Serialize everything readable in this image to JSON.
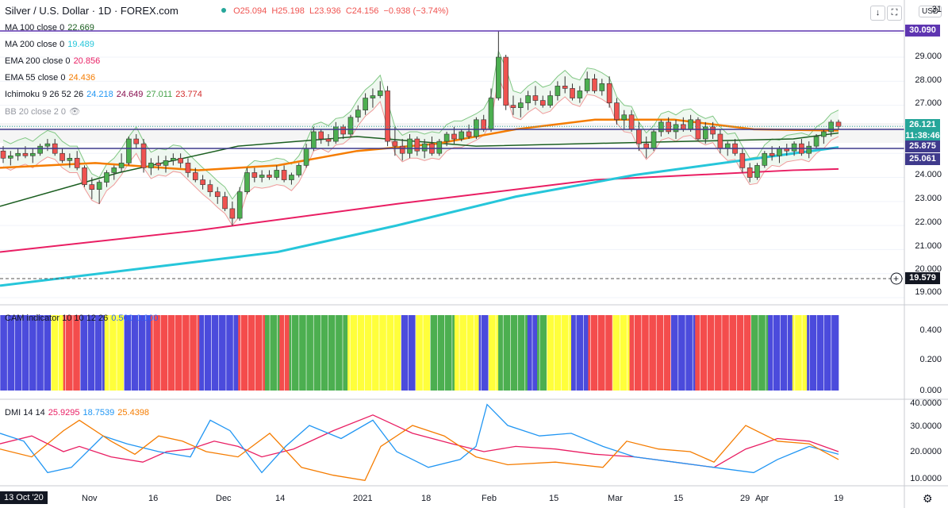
{
  "header": {
    "title": "Silver / U.S. Dollar · 1D · FOREX.com",
    "open": "O25.094",
    "high": "H25.198",
    "low": "L23.936",
    "close": "C24.156",
    "change": "−0.938 (−3.74%)",
    "currency": "USD",
    "down_arrow": "↓",
    "maximize": "⛶"
  },
  "indicators": [
    {
      "label": "MA 100 close 0",
      "values": [
        "22.669"
      ],
      "colors": [
        "#1b5e20"
      ]
    },
    {
      "label": "MA 200 close 0",
      "values": [
        "19.489"
      ],
      "colors": [
        "#26c6da"
      ]
    },
    {
      "label": "EMA 200 close 0",
      "values": [
        "20.856"
      ],
      "colors": [
        "#e91e63"
      ]
    },
    {
      "label": "EMA 55 close 0",
      "values": [
        "24.436"
      ],
      "colors": [
        "#f57c00"
      ]
    },
    {
      "label": "Ichimoku 9 26 52 26",
      "values": [
        "24.218",
        "24.649",
        "27.011",
        "23.774"
      ],
      "colors": [
        "#2196f3",
        "#880e4f",
        "#43a047",
        "#d32f2f"
      ]
    },
    {
      "label": "BB 20 close 2 0",
      "values": [],
      "colors": []
    }
  ],
  "price_axis": {
    "ticks": [
      "31",
      "29.000",
      "28.000",
      "27.000",
      "24.000",
      "23.000",
      "22.000",
      "21.000",
      "20.000",
      "19.000"
    ],
    "tags": [
      {
        "value": "30.090",
        "color": "#5e35b1"
      },
      {
        "value": "26.121",
        "color": "#26a69a"
      },
      {
        "value": "11:38:46",
        "color": "#26a69a"
      },
      {
        "value": "25.875",
        "color": "#3f3a8c"
      },
      {
        "value": "25.061",
        "color": "#3f3a8c"
      },
      {
        "value": "19.579",
        "color": "#131722"
      }
    ]
  },
  "cam": {
    "label": "CAM indicator 10 10 12 26",
    "value1": "0.500",
    "value2": "0.000",
    "ticks": [
      "0.400",
      "0.200",
      "0.000"
    ],
    "colors": {
      "B": "#4b4bdc",
      "Y": "#ffff3b",
      "R": "#f44c4c",
      "G": "#4caf50"
    },
    "sequence": "BBBBBBBBBBBBBBBBBBBBBYYYYYRRRRRRRBBBBBBBBBBYYYYYYYYBBBBBBBBBBBRRRRRRRRRRRRRRRRRRRRBBBBBBBBBBBBBBBBRRRRRRRRRRRGGGGGGRRRRGGGGGGGGGGGGGGGGGGGGGGGGYYYYYYYYYYYYYYYYYYYYYYBBBBBBYYYYYYGGGGGGGGGGYYYYYYYYYYBBBBYYYYGGGGGGGGGGGGBBBBGGGGYYYYYYYYYYBBBBBBBRRRRRRRRRRYYYYYYYRRRRRRRRRRRRRRRRRBBBBBBBBBBRRRRRRRRRRRRRRRRRRRRRRRGGGGGGGBBBBBBBBBBYYYYYYBBBBBBBBBBBBB"
  },
  "dmi": {
    "label": "DMI 14 14",
    "adx": "25.9295",
    "plus": "18.7539",
    "minus": "25.4398",
    "ticks": [
      "40.0000",
      "30.0000",
      "20.0000",
      "10.0000"
    ]
  },
  "time_axis": {
    "start": "13 Oct '20",
    "labels": [
      {
        "t": "Nov",
        "x": 103
      },
      {
        "t": "16",
        "x": 187
      },
      {
        "t": "Dec",
        "x": 272
      },
      {
        "t": "14",
        "x": 347
      },
      {
        "t": "2021",
        "x": 445
      },
      {
        "t": "18",
        "x": 531
      },
      {
        "t": "Feb",
        "x": 607
      },
      {
        "t": "15",
        "x": 692
      },
      {
        "t": "Mar",
        "x": 766
      },
      {
        "t": "15",
        "x": 849
      },
      {
        "t": "29",
        "x": 933
      },
      {
        "t": "Apr",
        "x": 952
      },
      {
        "t": "19",
        "x": 1051
      }
    ]
  },
  "chart_data": {
    "type": "candlestick",
    "title": "Silver / U.S. Dollar · 1D · FOREX.com",
    "ylim": [
      18.6,
      31.0
    ],
    "horizontal_levels": [
      30.09,
      25.875,
      25.061,
      19.579
    ],
    "candles": [
      [
        25.1,
        25.3,
        24.6,
        24.8
      ],
      [
        24.8,
        25.1,
        24.5,
        24.9
      ],
      [
        24.9,
        25.2,
        24.7,
        25.0
      ],
      [
        25.0,
        25.3,
        24.8,
        24.9
      ],
      [
        24.9,
        25.2,
        24.6,
        25.0
      ],
      [
        25.0,
        25.4,
        24.9,
        25.3
      ],
      [
        25.3,
        25.6,
        25.1,
        25.4
      ],
      [
        25.4,
        25.6,
        24.9,
        25.0
      ],
      [
        25.0,
        25.2,
        24.6,
        24.7
      ],
      [
        24.7,
        25.0,
        24.4,
        24.8
      ],
      [
        24.8,
        25.1,
        24.3,
        24.4
      ],
      [
        24.4,
        24.5,
        23.6,
        23.7
      ],
      [
        23.7,
        24.0,
        23.1,
        23.5
      ],
      [
        23.5,
        23.9,
        22.9,
        23.8
      ],
      [
        23.8,
        24.3,
        23.6,
        24.2
      ],
      [
        24.2,
        24.5,
        23.9,
        24.4
      ],
      [
        24.4,
        25.0,
        24.2,
        24.6
      ],
      [
        24.6,
        25.7,
        24.5,
        25.6
      ],
      [
        25.6,
        25.8,
        25.2,
        25.4
      ],
      [
        25.4,
        25.6,
        24.2,
        24.4
      ],
      [
        24.4,
        24.8,
        24.1,
        24.6
      ],
      [
        24.6,
        24.9,
        24.3,
        24.5
      ],
      [
        24.5,
        24.9,
        24.2,
        24.7
      ],
      [
        24.7,
        25.0,
        24.5,
        24.8
      ],
      [
        24.8,
        25.0,
        24.4,
        24.6
      ],
      [
        24.6,
        24.8,
        24.0,
        24.2
      ],
      [
        24.2,
        24.4,
        23.8,
        23.9
      ],
      [
        23.9,
        24.1,
        23.5,
        23.7
      ],
      [
        23.7,
        23.9,
        23.2,
        23.4
      ],
      [
        23.4,
        23.6,
        22.9,
        23.2
      ],
      [
        23.2,
        23.4,
        22.6,
        22.7
      ],
      [
        22.7,
        23.0,
        22.0,
        22.3
      ],
      [
        22.3,
        23.6,
        22.2,
        23.4
      ],
      [
        23.4,
        24.4,
        23.3,
        24.2
      ],
      [
        24.2,
        24.4,
        23.8,
        24.0
      ],
      [
        24.0,
        24.3,
        23.8,
        24.1
      ],
      [
        24.1,
        24.3,
        23.9,
        24.0
      ],
      [
        24.0,
        24.5,
        23.9,
        24.3
      ],
      [
        24.3,
        24.5,
        23.8,
        23.9
      ],
      [
        23.9,
        24.2,
        23.7,
        24.1
      ],
      [
        24.1,
        24.6,
        24.0,
        24.5
      ],
      [
        24.5,
        25.4,
        24.4,
        25.2
      ],
      [
        25.2,
        26.1,
        25.1,
        25.9
      ],
      [
        25.9,
        26.0,
        25.4,
        25.6
      ],
      [
        25.6,
        25.8,
        25.3,
        25.5
      ],
      [
        25.5,
        26.3,
        25.4,
        26.1
      ],
      [
        26.1,
        26.2,
        25.6,
        25.8
      ],
      [
        25.8,
        26.6,
        25.7,
        26.5
      ],
      [
        26.5,
        27.0,
        26.3,
        26.8
      ],
      [
        26.8,
        27.5,
        26.6,
        27.3
      ],
      [
        27.3,
        27.7,
        26.9,
        27.4
      ],
      [
        27.4,
        28.0,
        27.3,
        27.6
      ],
      [
        27.6,
        27.8,
        25.3,
        25.5
      ],
      [
        25.5,
        26.1,
        24.9,
        25.3
      ],
      [
        25.3,
        25.6,
        24.7,
        25.0
      ],
      [
        25.0,
        25.8,
        24.8,
        25.6
      ],
      [
        25.6,
        25.7,
        24.9,
        25.1
      ],
      [
        25.1,
        25.6,
        24.8,
        25.4
      ],
      [
        25.4,
        25.7,
        24.9,
        25.0
      ],
      [
        25.0,
        25.6,
        24.9,
        25.5
      ],
      [
        25.5,
        25.9,
        25.3,
        25.8
      ],
      [
        25.8,
        26.1,
        25.4,
        25.6
      ],
      [
        25.6,
        26.0,
        25.5,
        25.9
      ],
      [
        25.9,
        26.2,
        25.6,
        25.7
      ],
      [
        25.7,
        26.5,
        25.6,
        26.4
      ],
      [
        26.4,
        26.6,
        25.9,
        26.0
      ],
      [
        26.0,
        27.7,
        25.9,
        27.3
      ],
      [
        27.3,
        30.1,
        27.2,
        29.0
      ],
      [
        29.0,
        29.1,
        26.8,
        27.0
      ],
      [
        27.0,
        27.4,
        26.6,
        26.9
      ],
      [
        26.9,
        27.3,
        26.5,
        27.1
      ],
      [
        27.1,
        27.6,
        26.8,
        27.4
      ],
      [
        27.4,
        27.8,
        27.0,
        27.2
      ],
      [
        27.2,
        27.4,
        26.9,
        27.0
      ],
      [
        27.0,
        27.6,
        26.9,
        27.4
      ],
      [
        27.4,
        28.0,
        27.2,
        27.8
      ],
      [
        27.8,
        28.2,
        27.5,
        27.7
      ],
      [
        27.7,
        27.9,
        27.2,
        27.3
      ],
      [
        27.3,
        27.8,
        27.1,
        27.6
      ],
      [
        27.6,
        28.4,
        27.5,
        28.1
      ],
      [
        28.1,
        28.3,
        27.5,
        27.6
      ],
      [
        27.6,
        28.1,
        27.4,
        27.9
      ],
      [
        27.9,
        28.2,
        26.9,
        27.1
      ],
      [
        27.1,
        27.3,
        26.2,
        26.4
      ],
      [
        26.4,
        26.8,
        26.0,
        26.6
      ],
      [
        26.6,
        26.8,
        25.9,
        26.0
      ],
      [
        26.0,
        26.3,
        25.1,
        25.4
      ],
      [
        25.4,
        25.7,
        24.8,
        25.2
      ],
      [
        25.2,
        26.0,
        25.1,
        25.9
      ],
      [
        25.9,
        26.4,
        25.7,
        26.3
      ],
      [
        26.3,
        26.5,
        25.8,
        25.9
      ],
      [
        25.9,
        26.4,
        25.6,
        26.2
      ],
      [
        26.2,
        26.5,
        25.9,
        26.0
      ],
      [
        26.0,
        26.6,
        25.9,
        26.4
      ],
      [
        26.4,
        26.5,
        25.5,
        25.6
      ],
      [
        25.6,
        26.3,
        25.4,
        26.1
      ],
      [
        26.1,
        26.3,
        25.6,
        25.8
      ],
      [
        25.8,
        26.0,
        25.0,
        25.2
      ],
      [
        25.2,
        25.5,
        24.9,
        25.4
      ],
      [
        25.4,
        25.6,
        24.9,
        25.0
      ],
      [
        25.0,
        25.2,
        24.2,
        24.4
      ],
      [
        24.4,
        24.6,
        23.8,
        24.0
      ],
      [
        24.0,
        24.6,
        23.9,
        24.5
      ],
      [
        24.5,
        25.1,
        24.4,
        25.0
      ],
      [
        25.0,
        25.3,
        24.7,
        24.9
      ],
      [
        24.9,
        25.3,
        24.6,
        25.2
      ],
      [
        25.2,
        25.4,
        24.9,
        25.1
      ],
      [
        25.1,
        25.5,
        24.9,
        25.4
      ],
      [
        25.4,
        25.6,
        24.9,
        25.0
      ],
      [
        25.0,
        25.5,
        24.8,
        25.3
      ],
      [
        25.3,
        25.8,
        25.2,
        25.7
      ],
      [
        25.7,
        26.0,
        25.4,
        25.9
      ],
      [
        25.9,
        26.4,
        25.7,
        26.3
      ],
      [
        26.3,
        26.4,
        26.0,
        26.12
      ]
    ],
    "ema200": [
      [
        0,
        20.9
      ],
      [
        250,
        21.8
      ],
      [
        500,
        22.9
      ],
      [
        750,
        23.9
      ],
      [
        1000,
        24.3
      ],
      [
        1057,
        24.35
      ]
    ],
    "ma200": [
      [
        0,
        19.5
      ],
      [
        250,
        20.5
      ],
      [
        350,
        20.9
      ],
      [
        500,
        22.0
      ],
      [
        650,
        23.2
      ],
      [
        800,
        24.1
      ],
      [
        1000,
        25.0
      ],
      [
        1057,
        25.25
      ]
    ],
    "ma100": [
      [
        0,
        22.8
      ],
      [
        150,
        24.2
      ],
      [
        300,
        25.3
      ],
      [
        450,
        25.7
      ],
      [
        600,
        25.3
      ],
      [
        800,
        25.45
      ],
      [
        1000,
        25.6
      ],
      [
        1057,
        25.85
      ]
    ],
    "ema55": [
      [
        0,
        24.4
      ],
      [
        120,
        24.6
      ],
      [
        250,
        24.3
      ],
      [
        350,
        24.5
      ],
      [
        450,
        25.1
      ],
      [
        550,
        25.4
      ],
      [
        650,
        26.0
      ],
      [
        750,
        26.4
      ],
      [
        850,
        26.4
      ],
      [
        950,
        26.0
      ],
      [
        1057,
        25.95
      ]
    ]
  }
}
